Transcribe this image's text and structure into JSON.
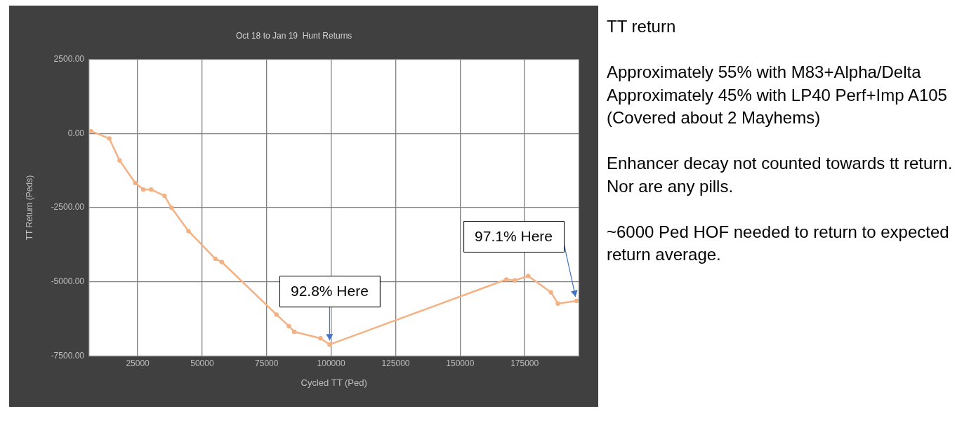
{
  "chart_data": [
    {
      "type": "line",
      "title": "Oct 18 to Jan 19  Hunt Returns",
      "xlabel": "Cycled TT (Ped)",
      "ylabel": "TT Return (Peds)",
      "x": [
        6900,
        14000,
        18000,
        24100,
        27200,
        30200,
        35400,
        38100,
        44700,
        55100,
        57600,
        78800,
        83600,
        85700,
        95900,
        99400,
        167900,
        171200,
        176400,
        185200,
        187900,
        195100
      ],
      "values": [
        80,
        -170,
        -910,
        -1670,
        -1890,
        -1890,
        -2100,
        -2500,
        -3290,
        -4220,
        -4330,
        -6100,
        -6490,
        -6680,
        -6900,
        -7110,
        -4920,
        -4950,
        -4800,
        -5350,
        -5730,
        -5640
      ],
      "color": "#f4b183",
      "xlim": [
        6200,
        196000
      ],
      "xticks": [
        25000,
        50000,
        75000,
        100000,
        125000,
        150000,
        175000
      ],
      "ylim": [
        -7500,
        2500
      ],
      "yticks": [
        {
          "value": 2500,
          "label": "2500.00"
        },
        {
          "value": 0,
          "label": "0.00"
        },
        {
          "value": -2500,
          "label": "-2500.00"
        },
        {
          "value": -5000,
          "label": "-5000.00"
        },
        {
          "value": -7500,
          "label": "-7500.00"
        }
      ],
      "grid": true,
      "marker": "circle",
      "line_style": "solid",
      "annotations": [
        {
          "text": "92.8% Here",
          "x": 99400,
          "y": -7110
        },
        {
          "text": "97.1% Here",
          "x": 195100,
          "y": -5640
        }
      ]
    },
    {
      "type": "other",
      "title": "TT return",
      "annotations": [
        "Approximately 55% with M83+Alpha/Delta\nApproximately 45% with LP40 Perf+Imp A105\n(Covered about 2 Mayhems)",
        "Enhancer decay not counted towards tt return.\nNor are any pills.",
        "~6000 Ped HOF needed to return to expected return average."
      ]
    }
  ]
}
